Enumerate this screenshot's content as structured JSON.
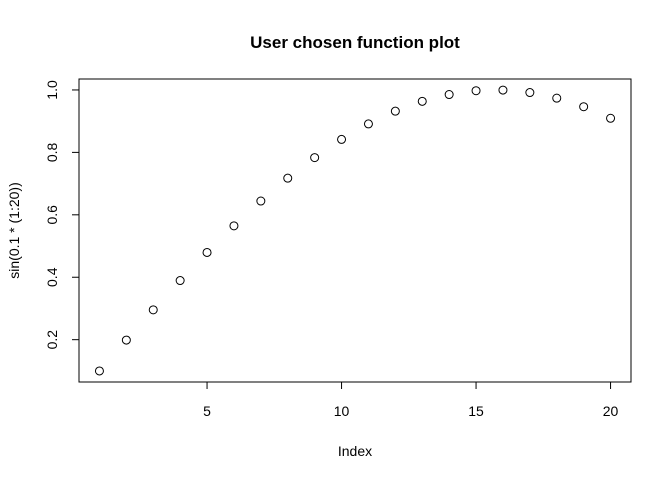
{
  "chart_data": {
    "type": "scatter",
    "title": "User chosen function plot",
    "xlabel": "Index",
    "ylabel": "sin(0.1 * (1:20))",
    "xlim": [
      0.24,
      20.76
    ],
    "ylim": [
      0.0644,
      1.0351
    ],
    "x_ticks": [
      5,
      10,
      15,
      20
    ],
    "y_ticks": [
      0.2,
      0.4,
      0.6,
      0.8,
      1.0
    ],
    "x_tick_labels": [
      "5",
      "10",
      "15",
      "20"
    ],
    "y_tick_labels": [
      "0.2",
      "0.4",
      "0.6",
      "0.8",
      "1.0"
    ],
    "grid": false,
    "point_style": "open-circle",
    "colors": {
      "points": "#000000",
      "axes": "#000000",
      "background": "#ffffff"
    },
    "x": [
      1,
      2,
      3,
      4,
      5,
      6,
      7,
      8,
      9,
      10,
      11,
      12,
      13,
      14,
      15,
      16,
      17,
      18,
      19,
      20
    ],
    "y": [
      0.0998,
      0.1987,
      0.2955,
      0.3894,
      0.4794,
      0.5646,
      0.6442,
      0.7174,
      0.7833,
      0.8415,
      0.8912,
      0.932,
      0.9636,
      0.9854,
      0.9975,
      0.9996,
      0.9917,
      0.9738,
      0.9463,
      0.9093
    ]
  }
}
